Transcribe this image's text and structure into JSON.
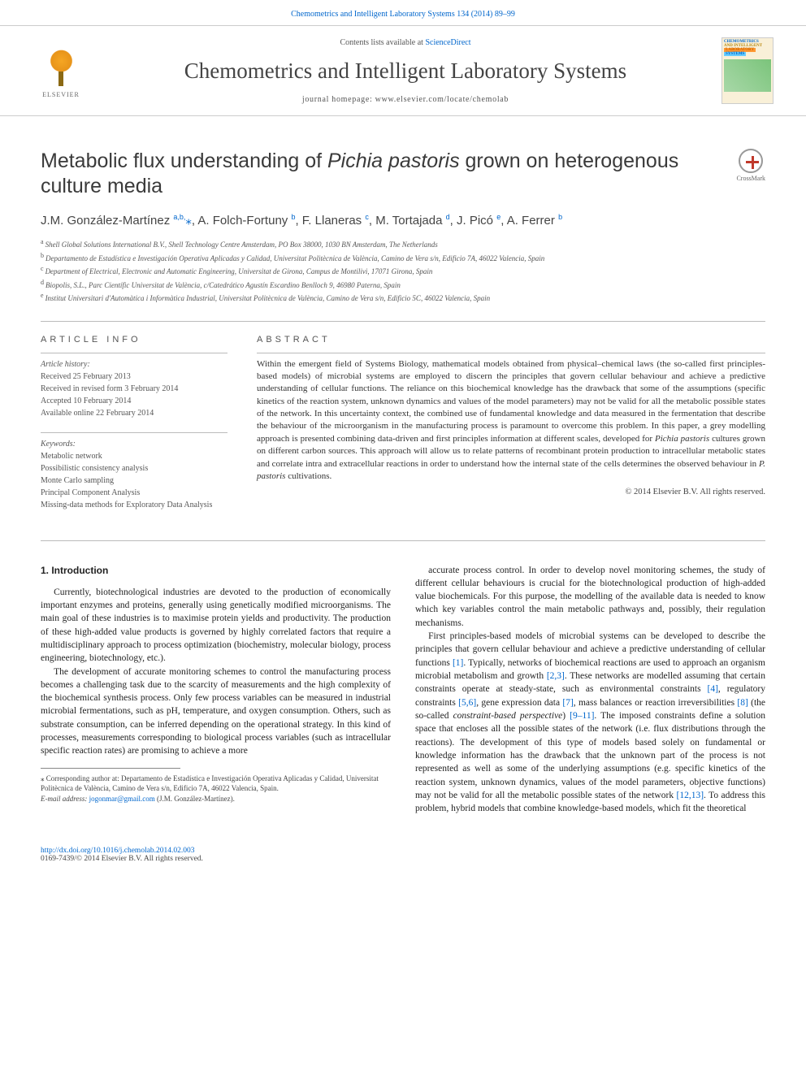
{
  "top_citation": "Chemometrics and Intelligent Laboratory Systems 134 (2014) 89–99",
  "banner": {
    "contents_prefix": "Contents lists available at ",
    "contents_link": "ScienceDirect",
    "journal_title": "Chemometrics and Intelligent Laboratory Systems",
    "homepage_prefix": "journal homepage: ",
    "homepage_url": "www.elsevier.com/locate/chemolab",
    "publisher": "ELSEVIER",
    "cover_labels": {
      "l1": "CHEMOMETRICS",
      "l2": "AND INTELLIGENT",
      "l3": "LABORATORY",
      "l4": "SYSTEMS"
    }
  },
  "crossmark_label": "CrossMark",
  "title_pre": "Metabolic flux understanding of ",
  "title_em": "Pichia pastoris",
  "title_post": " grown on heterogenous culture media",
  "authors_html": "J.M. González-Martínez <sup>a,b,</sup><span class='star'>⁎</span>, A. Folch-Fortuny <sup>b</sup>, F. Llaneras <sup>c</sup>, M. Tortajada <sup>d</sup>, J. Picó <sup>e</sup>, A. Ferrer <sup>b</sup>",
  "affiliations": [
    {
      "sup": "a",
      "text": "Shell Global Solutions International B.V., Shell Technology Centre Amsterdam, PO Box 38000, 1030 BN Amsterdam, The Netherlands"
    },
    {
      "sup": "b",
      "text": "Departamento de Estadística e Investigación Operativa Aplicadas y Calidad, Universitat Politècnica de València, Camino de Vera s/n, Edificio 7A, 46022 Valencia, Spain"
    },
    {
      "sup": "c",
      "text": "Department of Electrical, Electronic and Automatic Engineering, Universitat de Girona, Campus de Montilivi, 17071 Girona, Spain"
    },
    {
      "sup": "d",
      "text": "Biopolis, S.L., Parc Científic Universitat de València, c/Catedrático Agustín Escardino Benlloch 9, 46980 Paterna, Spain"
    },
    {
      "sup": "e",
      "text": "Institut Universitari d'Automàtica i Informàtica Industrial, Universitat Politècnica de València, Camino de Vera s/n, Edificio 5C, 46022 Valencia, Spain"
    }
  ],
  "article_info_label": "article info",
  "abstract_label": "abstract",
  "history": {
    "label": "Article history:",
    "items": [
      "Received 25 February 2013",
      "Received in revised form 3 February 2014",
      "Accepted 10 February 2014",
      "Available online 22 February 2014"
    ]
  },
  "keywords": {
    "label": "Keywords:",
    "items": [
      "Metabolic network",
      "Possibilistic consistency analysis",
      "Monte Carlo sampling",
      "Principal Component Analysis",
      "Missing-data methods for Exploratory Data Analysis"
    ]
  },
  "abstract_text": "Within the emergent field of Systems Biology, mathematical models obtained from physical–chemical laws (the so-called first principles-based models) of microbial systems are employed to discern the principles that govern cellular behaviour and achieve a predictive understanding of cellular functions. The reliance on this biochemical knowledge has the drawback that some of the assumptions (specific kinetics of the reaction system, unknown dynamics and values of the model parameters) may not be valid for all the metabolic possible states of the network. In this uncertainty context, the combined use of fundamental knowledge and data measured in the fermentation that describe the behaviour of the microorganism in the manufacturing process is paramount to overcome this problem. In this paper, a grey modelling approach is presented combining data-driven and first principles information at different scales, developed for <em>Pichia pastoris</em> cultures grown on different carbon sources. This approach will allow us to relate patterns of recombinant protein production to intracellular metabolic states and correlate intra and extracellular reactions in order to understand how the internal state of the cells determines the observed behaviour in <em>P. pastoris</em> cultivations.",
  "copyright": "© 2014 Elsevier B.V. All rights reserved.",
  "intro_heading": "1. Introduction",
  "body": {
    "p1": "Currently, biotechnological industries are devoted to the production of economically important enzymes and proteins, generally using genetically modified microorganisms. The main goal of these industries is to maximise protein yields and productivity. The production of these high-added value products is governed by highly correlated factors that require a multidisciplinary approach to process optimization (biochemistry, molecular biology, process engineering, biotechnology, etc.).",
    "p2": "The development of accurate monitoring schemes to control the manufacturing process becomes a challenging task due to the scarcity of measurements and the high complexity of the biochemical synthesis process. Only few process variables can be measured in industrial microbial fermentations, such as pH, temperature, and oxygen consumption. Others, such as substrate consumption, can be inferred depending on the operational strategy. In this kind of processes, measurements corresponding to biological process variables (such as intracellular specific reaction rates) are promising to achieve a more",
    "p3": "accurate process control. In order to develop novel monitoring schemes, the study of different cellular behaviours is crucial for the biotechnological production of high-added value biochemicals. For this purpose, the modelling of the available data is needed to know which key variables control the main metabolic pathways and, possibly, their regulation mechanisms.",
    "p4_pre": "First principles-based models of microbial systems can be developed to describe the principles that govern cellular behaviour and achieve a predictive understanding of cellular functions ",
    "p4_r1": "[1]",
    "p4_a": ". Typically, networks of biochemical reactions are used to approach an organism microbial metabolism and growth ",
    "p4_r2": "[2,3]",
    "p4_b": ". These networks are modelled assuming that certain constraints operate at steady-state, such as environmental constraints ",
    "p4_r3": "[4]",
    "p4_c": ", regulatory constraints ",
    "p4_r4": "[5,6]",
    "p4_d": ", gene expression data ",
    "p4_r5": "[7]",
    "p4_e": ", mass balances or reaction irreversibilities ",
    "p4_r6": "[8]",
    "p4_f": " (the so-called <em>constraint-based perspective</em>) ",
    "p4_r7": "[9–11]",
    "p4_g": ". The imposed constraints define a solution space that encloses all the possible states of the network (i.e. flux distributions through the reactions). The development of this type of models based solely on fundamental or knowledge information has the drawback that the unknown part of the process is not represented as well as some of the underlying assumptions (e.g. specific kinetics of the reaction system, unknown dynamics, values of the model parameters, objective functions) may not be valid for all the metabolic possible states of the network ",
    "p4_r8": "[12,13]",
    "p4_h": ". To address this problem, hybrid models that combine knowledge-based models, which fit the theoretical"
  },
  "footnote": {
    "corr_label": "⁎",
    "corr_text": "Corresponding author at: Departamento de Estadística e Investigación Operativa Aplicadas y Calidad, Universitat Politècnica de València, Camino de Vera s/n, Edificio 7A, 46022 Valencia, Spain.",
    "email_label": "E-mail address:",
    "email": "jogonmar@gmail.com",
    "email_who": "(J.M. González-Martínez)."
  },
  "footer": {
    "doi": "http://dx.doi.org/10.1016/j.chemolab.2014.02.003",
    "issn_line": "0169-7439/© 2014 Elsevier B.V. All rights reserved."
  },
  "colors": {
    "link": "#0066cc",
    "text": "#333333",
    "rule": "#bbbbbb"
  }
}
